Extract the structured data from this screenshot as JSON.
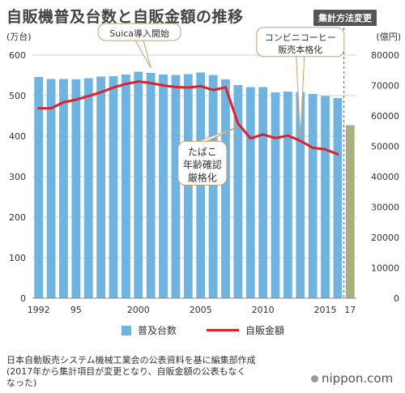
{
  "title": "自販機普及台数と自販金額の推移",
  "badge": "集計方法変更",
  "source_line1": "日本自動販売システム機械工業会の公表資料を基に編集部作成",
  "source_line2": "(2017年から集計項目が変更となり、自販金額の公表もなく",
  "source_line3": "なった)",
  "logo": "nippon.com",
  "colors": {
    "bar": "#6fb3e0",
    "bar_2017": "#a8b07e",
    "line": "#e0202a",
    "callout_border": "#c9a070",
    "grid": "#d0d0d0"
  },
  "chart_data": {
    "type": "bar+line",
    "left_axis": {
      "unit": "(万台)",
      "ylim": [
        0,
        600
      ],
      "ticks": [
        0,
        100,
        200,
        300,
        400,
        500,
        600
      ]
    },
    "right_axis": {
      "unit": "(億円)",
      "ylim": [
        0,
        80000
      ],
      "ticks": [
        0,
        10000,
        20000,
        30000,
        40000,
        50000,
        60000,
        70000,
        80000
      ]
    },
    "x_tick_labels": [
      {
        "year": 1992,
        "label": "1992"
      },
      {
        "year": 1995,
        "label": "95"
      },
      {
        "year": 2000,
        "label": "2000"
      },
      {
        "year": 2005,
        "label": "2005"
      },
      {
        "year": 2010,
        "label": "2010"
      },
      {
        "year": 2015,
        "label": "2015"
      },
      {
        "year": 2017,
        "label": "17"
      }
    ],
    "categories": [
      1992,
      1993,
      1994,
      1995,
      1996,
      1997,
      1998,
      1999,
      2000,
      2001,
      2002,
      2003,
      2004,
      2005,
      2006,
      2007,
      2008,
      2009,
      2010,
      2011,
      2012,
      2013,
      2014,
      2015,
      2016,
      2017
    ],
    "series": [
      {
        "name": "普及台数",
        "axis": "left",
        "type": "bar",
        "values": [
          546,
          541,
          541,
          540,
          543,
          547,
          548,
          552,
          559,
          556,
          552,
          551,
          553,
          557,
          551,
          540,
          526,
          521,
          521,
          508,
          510,
          509,
          504,
          499,
          494,
          427
        ]
      },
      {
        "name": "自販金額",
        "axis": "right",
        "type": "line",
        "x": [
          1992,
          1993,
          1994,
          1995,
          1996,
          1997,
          1998,
          1999,
          2000,
          2001,
          2002,
          2003,
          2004,
          2005,
          2006,
          2007,
          2008,
          2009,
          2010,
          2011,
          2012,
          2013,
          2014,
          2015,
          2016
        ],
        "values": [
          62500,
          62500,
          64500,
          65300,
          66500,
          67800,
          69300,
          70500,
          71300,
          70800,
          70000,
          69500,
          69300,
          69800,
          68500,
          69400,
          57500,
          52600,
          53900,
          52700,
          53500,
          51800,
          49500,
          49000,
          47400
        ]
      }
    ],
    "annotations": [
      {
        "lines": [
          "Suica導入開始"
        ],
        "year": 2001,
        "axis": "left",
        "value": 560
      },
      {
        "lines": [
          "コンビニコーヒー",
          "販売本格化"
        ],
        "year": 2013,
        "axis": "right",
        "value": 51800
      },
      {
        "lines": [
          "たばこ",
          "年齢確認",
          "厳格化"
        ],
        "year": 2008,
        "axis": "right",
        "value": 57500
      }
    ]
  }
}
